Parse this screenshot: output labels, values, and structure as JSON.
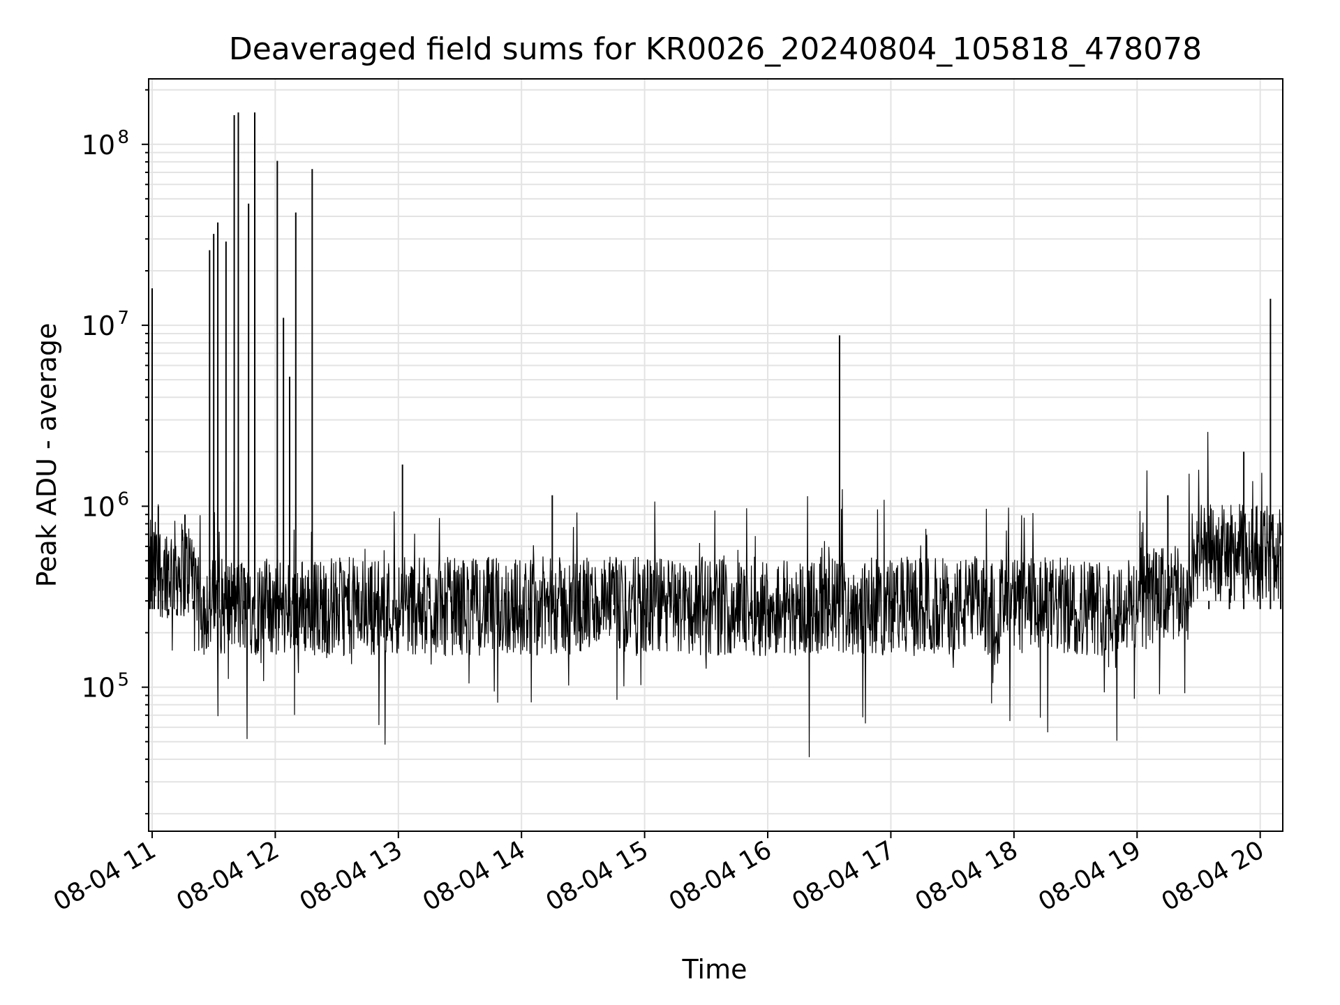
{
  "chart_data": {
    "type": "line",
    "title": "Deaveraged field sums for KR0026_20240804_105818_478078",
    "xlabel": "Time",
    "ylabel": "Peak ADU - average",
    "y_scale": "log",
    "ylim": [
      16000,
      230000000
    ],
    "xlim": [
      "2024-08-04 10:58:18",
      "2024-08-04 20:11:00"
    ],
    "grid": true,
    "x_ticks": [
      {
        "t": "2024-08-04 11:00",
        "label": "08-04 11"
      },
      {
        "t": "2024-08-04 12:00",
        "label": "08-04 12"
      },
      {
        "t": "2024-08-04 13:00",
        "label": "08-04 13"
      },
      {
        "t": "2024-08-04 14:00",
        "label": "08-04 14"
      },
      {
        "t": "2024-08-04 15:00",
        "label": "08-04 15"
      },
      {
        "t": "2024-08-04 16:00",
        "label": "08-04 16"
      },
      {
        "t": "2024-08-04 17:00",
        "label": "08-04 17"
      },
      {
        "t": "2024-08-04 18:00",
        "label": "08-04 18"
      },
      {
        "t": "2024-08-04 19:00",
        "label": "08-04 19"
      },
      {
        "t": "2024-08-04 20:00",
        "label": "08-04 20"
      }
    ],
    "y_ticks": [
      {
        "value": 100000,
        "base": "10",
        "exp": "5"
      },
      {
        "value": 1000000,
        "base": "10",
        "exp": "6"
      },
      {
        "value": 10000000,
        "base": "10",
        "exp": "7"
      },
      {
        "value": 100000000,
        "base": "10",
        "exp": "8"
      }
    ],
    "series": [
      {
        "color": "#000000",
        "x": [
          "2024-08-04 10:59",
          "2024-08-04 11:00",
          "2024-08-04 11:01",
          "2024-08-04 11:03",
          "2024-08-04 11:05",
          "2024-08-04 11:08",
          "2024-08-04 11:12",
          "2024-08-04 11:16",
          "2024-08-04 11:20",
          "2024-08-04 11:25",
          "2024-08-04 11:28",
          "2024-08-04 11:30",
          "2024-08-04 11:32",
          "2024-08-04 11:34",
          "2024-08-04 11:36",
          "2024-08-04 11:38",
          "2024-08-04 11:40",
          "2024-08-04 11:42",
          "2024-08-04 11:45",
          "2024-08-04 11:47",
          "2024-08-04 11:50",
          "2024-08-04 11:55",
          "2024-08-04 12:01",
          "2024-08-04 12:04",
          "2024-08-04 12:07",
          "2024-08-04 12:10",
          "2024-08-04 12:14",
          "2024-08-04 12:18",
          "2024-08-04 12:22",
          "2024-08-04 12:30",
          "2024-08-04 12:40",
          "2024-08-04 12:50",
          "2024-08-04 13:02",
          "2024-08-04 13:15",
          "2024-08-04 13:30",
          "2024-08-04 13:45",
          "2024-08-04 14:00",
          "2024-08-04 14:15",
          "2024-08-04 14:30",
          "2024-08-04 14:45",
          "2024-08-04 15:00",
          "2024-08-04 15:15",
          "2024-08-04 15:30",
          "2024-08-04 15:45",
          "2024-08-04 16:00",
          "2024-08-04 16:15",
          "2024-08-04 16:30",
          "2024-08-04 16:35",
          "2024-08-04 16:45",
          "2024-08-04 17:00",
          "2024-08-04 17:15",
          "2024-08-04 17:30",
          "2024-08-04 17:45",
          "2024-08-04 18:00",
          "2024-08-04 18:15",
          "2024-08-04 18:30",
          "2024-08-04 18:45",
          "2024-08-04 19:00",
          "2024-08-04 19:10",
          "2024-08-04 19:15",
          "2024-08-04 19:25",
          "2024-08-04 19:35",
          "2024-08-04 19:45",
          "2024-08-04 19:52",
          "2024-08-04 20:00",
          "2024-08-04 20:05",
          "2024-08-04 20:10"
        ],
        "values": [
          600000,
          16000000,
          400000,
          1000000,
          300000,
          250000,
          250000,
          900000,
          300000,
          350000,
          26000000,
          32000000,
          37000000,
          400000,
          29000000,
          300000,
          145000000,
          150000000,
          300000,
          47000000,
          150000000,
          400000,
          81000000,
          11000000,
          5200000,
          42000000,
          350000,
          73000000,
          300000,
          350000,
          300000,
          300000,
          1700000,
          300000,
          300000,
          250000,
          250000,
          1150000,
          300000,
          250000,
          250000,
          250000,
          250000,
          250000,
          250000,
          250000,
          250000,
          8800000,
          350000,
          300000,
          300000,
          300000,
          300000,
          250000,
          300000,
          250000,
          250000,
          250000,
          400000,
          1150000,
          300000,
          300000,
          350000,
          2000000,
          600000,
          14000000,
          600000
        ]
      }
    ]
  }
}
